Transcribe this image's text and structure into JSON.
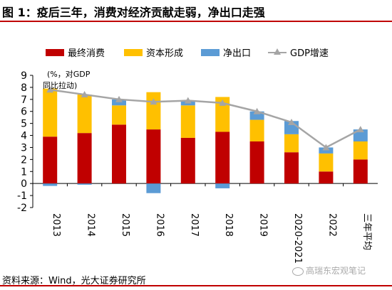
{
  "title": "图 1：疫后三年，消费对经济贡献走弱，净出口走强",
  "source": "资料来源：Wind，光大证券研究所",
  "watermark": "高瑞东宏观笔记",
  "colors": {
    "consumption": "#c00000",
    "capital": "#ffc000",
    "netexport": "#5b9bd5",
    "gdp": "#a5a5a5",
    "accent": "#c00000"
  },
  "chart_data": {
    "type": "bar",
    "stacked": true,
    "unit_annotation": "(%，对GDP同比拉动)",
    "categories": [
      "2013",
      "2014",
      "2015",
      "2016",
      "2017",
      "2018",
      "2019",
      "2020-2021",
      "2022",
      "三年平均"
    ],
    "series": [
      {
        "name": "最终消费",
        "type": "bar",
        "values": [
          3.9,
          4.2,
          4.9,
          4.5,
          3.8,
          4.3,
          3.5,
          2.6,
          1.0,
          2.0
        ]
      },
      {
        "name": "资本形成",
        "type": "bar",
        "values": [
          4.0,
          3.2,
          1.6,
          3.1,
          2.7,
          2.9,
          1.8,
          1.5,
          1.5,
          1.5
        ]
      },
      {
        "name": "净出口",
        "type": "bar",
        "values": [
          -0.2,
          -0.1,
          0.5,
          -0.8,
          0.4,
          -0.4,
          0.7,
          1.1,
          0.5,
          1.0
        ]
      },
      {
        "name": "GDP增速",
        "type": "line",
        "values": [
          7.8,
          7.4,
          7.0,
          6.8,
          6.9,
          6.7,
          6.0,
          5.1,
          3.0,
          4.5
        ]
      }
    ],
    "ylim": [
      -2,
      9
    ],
    "yticks": [
      "9",
      "8",
      "7",
      "6",
      "5",
      "4",
      "3",
      "2",
      "1",
      "0",
      "-1",
      "-2"
    ],
    "legend_position": "top",
    "grid": false
  }
}
